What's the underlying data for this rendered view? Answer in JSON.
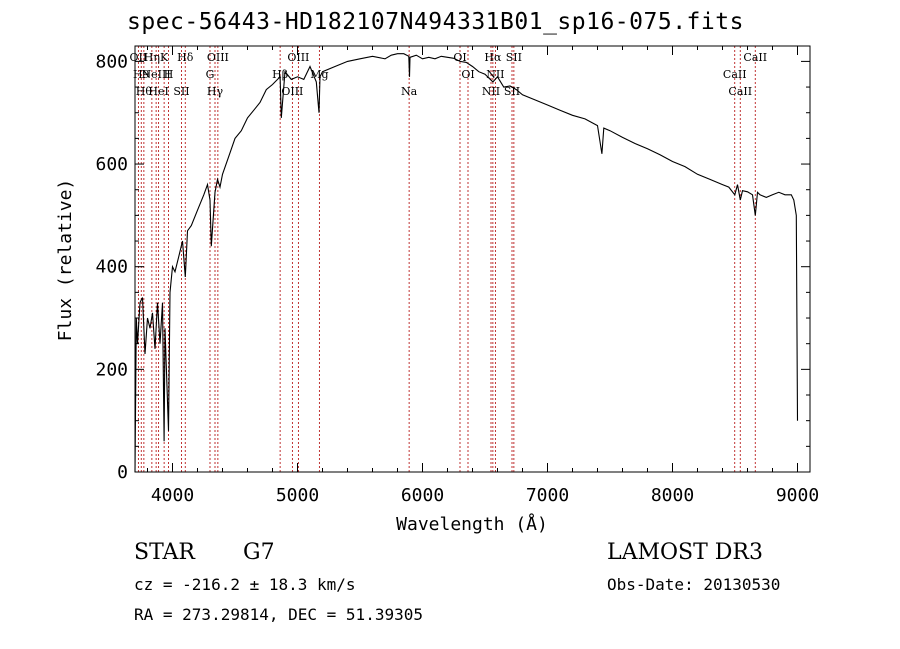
{
  "chart_data": {
    "type": "line",
    "title": "spec-56443-HD182107N494331B01_sp16-075.fits",
    "xlabel": "Wavelength (Å)",
    "ylabel": "Flux (relative)",
    "xlim": [
      3700,
      9100
    ],
    "ylim": [
      0,
      830
    ],
    "x_ticks": [
      4000,
      5000,
      6000,
      7000,
      8000,
      9000
    ],
    "y_ticks": [
      0,
      200,
      400,
      600,
      800
    ],
    "series": [
      {
        "name": "flux",
        "x": [
          3700,
          3710,
          3720,
          3740,
          3760,
          3780,
          3800,
          3820,
          3840,
          3860,
          3880,
          3900,
          3920,
          3933,
          3940,
          3968,
          3980,
          4000,
          4020,
          4050,
          4080,
          4102,
          4120,
          4150,
          4200,
          4250,
          4280,
          4300,
          4310,
          4340,
          4360,
          4380,
          4400,
          4450,
          4500,
          4550,
          4600,
          4650,
          4700,
          4750,
          4800,
          4861,
          4870,
          4900,
          4950,
          5000,
          5050,
          5100,
          5150,
          5172,
          5180,
          5200,
          5300,
          5400,
          5500,
          5600,
          5700,
          5750,
          5800,
          5850,
          5890,
          5896,
          5900,
          5950,
          6000,
          6050,
          6100,
          6150,
          6200,
          6250,
          6300,
          6350,
          6400,
          6450,
          6500,
          6563,
          6600,
          6650,
          6700,
          6750,
          6800,
          6900,
          7000,
          7100,
          7200,
          7300,
          7400,
          7435,
          7450,
          7500,
          7600,
          7700,
          7800,
          7900,
          8000,
          8100,
          8200,
          8300,
          8400,
          8450,
          8498,
          8520,
          8542,
          8560,
          8600,
          8640,
          8662,
          8680,
          8700,
          8750,
          8800,
          8850,
          8900,
          8950,
          8970,
          8990,
          9000
        ],
        "values": [
          0,
          300,
          250,
          330,
          340,
          230,
          300,
          280,
          310,
          240,
          330,
          250,
          330,
          60,
          280,
          80,
          350,
          400,
          390,
          420,
          450,
          380,
          470,
          480,
          510,
          540,
          560,
          530,
          440,
          545,
          570,
          555,
          580,
          615,
          650,
          665,
          690,
          705,
          720,
          745,
          755,
          770,
          690,
          780,
          765,
          770,
          765,
          790,
          760,
          700,
          770,
          780,
          790,
          800,
          805,
          810,
          805,
          812,
          815,
          815,
          810,
          770,
          808,
          812,
          805,
          808,
          805,
          810,
          808,
          806,
          800,
          798,
          790,
          780,
          775,
          760,
          770,
          750,
          752,
          745,
          735,
          725,
          715,
          705,
          695,
          688,
          675,
          620,
          670,
          665,
          652,
          640,
          630,
          618,
          605,
          595,
          580,
          570,
          560,
          555,
          540,
          560,
          530,
          548,
          546,
          540,
          500,
          545,
          540,
          535,
          540,
          545,
          540,
          540,
          530,
          500,
          100
        ]
      }
    ],
    "lines": [
      {
        "x": 3727,
        "label": "OII"
      },
      {
        "x": 3750,
        "label": "H9"
      },
      {
        "x": 3771,
        "label": "Hθ"
      },
      {
        "x": 3835,
        "label": "Hη"
      },
      {
        "x": 3869,
        "label": "NeIII"
      },
      {
        "x": 3889,
        "label": "HeI"
      },
      {
        "x": 3933,
        "label": "K"
      },
      {
        "x": 3968,
        "label": "H"
      },
      {
        "x": 4072,
        "label": "SII"
      },
      {
        "x": 4102,
        "label": "Hδ"
      },
      {
        "x": 4300,
        "label": "G"
      },
      {
        "x": 4340,
        "label": "Hγ"
      },
      {
        "x": 4363,
        "label": "OIII"
      },
      {
        "x": 4861,
        "label": "Hβ"
      },
      {
        "x": 4959,
        "label": "OIII"
      },
      {
        "x": 5007,
        "label": "OIII"
      },
      {
        "x": 5175,
        "label": "Mg"
      },
      {
        "x": 5893,
        "label": "Na"
      },
      {
        "x": 6300,
        "label": "OI"
      },
      {
        "x": 6364,
        "label": "OI"
      },
      {
        "x": 6548,
        "label": "NII"
      },
      {
        "x": 6563,
        "label": "Hα"
      },
      {
        "x": 6583,
        "label": "NII"
      },
      {
        "x": 6716,
        "label": "SII"
      },
      {
        "x": 6731,
        "label": "SII"
      },
      {
        "x": 8498,
        "label": "CaII"
      },
      {
        "x": 8542,
        "label": "CaII"
      },
      {
        "x": 8662,
        "label": "CaII"
      }
    ],
    "grid": false
  },
  "info": {
    "object_type": "STAR",
    "spectral_class": "G7",
    "survey": "LAMOST DR3",
    "redshift_line": "cz = -216.2 ± 18.3 km/s",
    "obs_date": "Obs-Date: 20130530",
    "coords": "RA = 273.29814, DEC =  51.39305"
  }
}
